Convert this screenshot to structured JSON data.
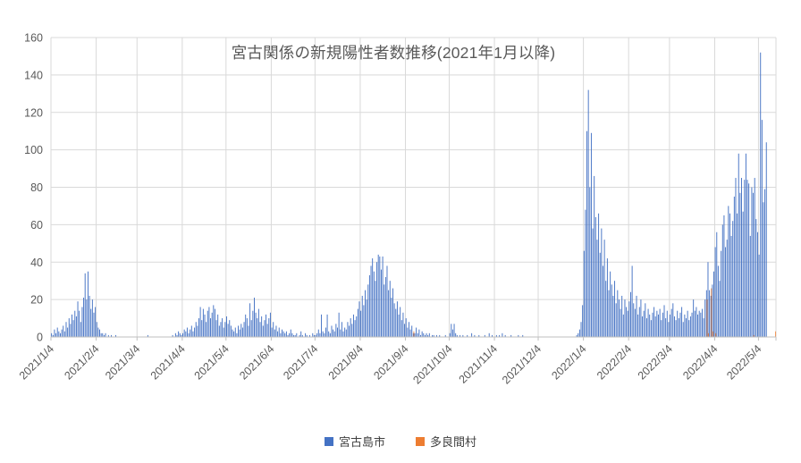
{
  "title": "宮古関係の新規陽性者数推移(2021年1月以降)",
  "legend": [
    {
      "label": "宮古島市",
      "color": "#4472C4"
    },
    {
      "label": "多良間村",
      "color": "#ED7D31"
    }
  ],
  "colors": {
    "series_blue": "#4472C4",
    "series_orange": "#ED7D31",
    "gridline": "#D9D9D9",
    "axis_line": "#BFBFBF",
    "axis_text": "#595959",
    "title_text": "#595959",
    "legend_text": "#404040",
    "background": "#FFFFFF"
  },
  "chart_data": {
    "type": "bar",
    "title": "宮古関係の新規陽性者数推移(2021年1月以降)",
    "xlabel": "",
    "ylabel": "",
    "ylim": [
      0,
      160
    ],
    "y_ticks": [
      0,
      20,
      40,
      60,
      80,
      100,
      120,
      140,
      160
    ],
    "grid": true,
    "legend_position": "bottom",
    "x_unit": "daily (one bar per day)",
    "start_date": "2021/1/4",
    "n_days": 497,
    "x_tick_labels": [
      "2021/1/4",
      "2021/2/4",
      "2021/3/4",
      "2021/4/4",
      "2021/5/4",
      "2021/6/4",
      "2021/7/4",
      "2021/8/4",
      "2021/9/4",
      "2021/10/4",
      "2021/11/4",
      "2021/12/4",
      "2022/1/4",
      "2022/2/4",
      "2022/3/4",
      "2022/4/4",
      "2022/5/4"
    ],
    "x_tick_indices": [
      0,
      31,
      59,
      90,
      120,
      151,
      181,
      212,
      243,
      273,
      304,
      334,
      365,
      396,
      424,
      455,
      485
    ],
    "series": [
      {
        "name": "宮古島市",
        "color": "#4472C4",
        "values": [
          2,
          1,
          4,
          2,
          5,
          3,
          2,
          4,
          6,
          3,
          8,
          5,
          10,
          7,
          12,
          9,
          14,
          11,
          19,
          14,
          8,
          16,
          21,
          34,
          20,
          35,
          22,
          15,
          20,
          13,
          16,
          8,
          5,
          4,
          2,
          2,
          1,
          2,
          0,
          1,
          0,
          1,
          0,
          0,
          1,
          0,
          0,
          0,
          0,
          0,
          0,
          0,
          0,
          0,
          0,
          0,
          0,
          0,
          0,
          0,
          0,
          0,
          0,
          0,
          0,
          0,
          1,
          0,
          0,
          0,
          0,
          0,
          0,
          0,
          0,
          0,
          0,
          0,
          0,
          0,
          0,
          0,
          0,
          1,
          0,
          2,
          1,
          3,
          2,
          1,
          2,
          4,
          3,
          5,
          2,
          4,
          6,
          3,
          5,
          8,
          6,
          10,
          16,
          9,
          15,
          12,
          8,
          14,
          16,
          10,
          13,
          17,
          15,
          9,
          12,
          6,
          8,
          10,
          5,
          8,
          11,
          7,
          9,
          6,
          4,
          3,
          5,
          2,
          6,
          4,
          7,
          5,
          8,
          12,
          10,
          6,
          18,
          9,
          14,
          21,
          13,
          10,
          15,
          8,
          11,
          6,
          9,
          12,
          7,
          10,
          13,
          5,
          8,
          4,
          6,
          3,
          5,
          2,
          4,
          3,
          2,
          3,
          1,
          2,
          4,
          2,
          1,
          1,
          2,
          0,
          1,
          3,
          1,
          0,
          2,
          1,
          0,
          1,
          0,
          2,
          1,
          1,
          2,
          4,
          2,
          12,
          3,
          2,
          5,
          12,
          3,
          2,
          6,
          4,
          3,
          7,
          5,
          13,
          4,
          8,
          3,
          5,
          4,
          8,
          6,
          10,
          7,
          12,
          9,
          11,
          15,
          19,
          14,
          22,
          17,
          25,
          20,
          28,
          33,
          38,
          42,
          35,
          30,
          40,
          44,
          43,
          36,
          43,
          28,
          32,
          38,
          25,
          30,
          21,
          26,
          18,
          15,
          19,
          12,
          16,
          9,
          13,
          7,
          10,
          5,
          8,
          4,
          6,
          2,
          2,
          5,
          2,
          4,
          1,
          3,
          2,
          1,
          2,
          1,
          2,
          0,
          1,
          1,
          0,
          1,
          0,
          1,
          0,
          0,
          0,
          1,
          0,
          0,
          2,
          7,
          4,
          7,
          2,
          1,
          0,
          1,
          0,
          1,
          0,
          0,
          1,
          0,
          0,
          2,
          0,
          1,
          0,
          0,
          1,
          0,
          0,
          0,
          1,
          0,
          0,
          2,
          0,
          1,
          0,
          0,
          1,
          0,
          1,
          0,
          2,
          0,
          1,
          0,
          0,
          0,
          1,
          0,
          0,
          0,
          0,
          1,
          0,
          0,
          1,
          0,
          0,
          0,
          0,
          0,
          0,
          0,
          0,
          0,
          0,
          0,
          0,
          0,
          0,
          0,
          0,
          0,
          0,
          0,
          0,
          0,
          0,
          0,
          0,
          0,
          0,
          0,
          0,
          0,
          0,
          0,
          0,
          0,
          0,
          0,
          0,
          1,
          2,
          4,
          8,
          17,
          46,
          68,
          110,
          132,
          80,
          109,
          58,
          86,
          64,
          52,
          66,
          45,
          58,
          38,
          52,
          30,
          42,
          25,
          35,
          28,
          22,
          30,
          18,
          25,
          20,
          15,
          22,
          12,
          20,
          16,
          14,
          19,
          24,
          38,
          18,
          15,
          22,
          12,
          16,
          20,
          11,
          14,
          18,
          10,
          15,
          12,
          9,
          13,
          16,
          11,
          14,
          12,
          15,
          9,
          13,
          17,
          10,
          14,
          8,
          12,
          15,
          18,
          11,
          9,
          14,
          10,
          13,
          16,
          8,
          12,
          10,
          14,
          9,
          11,
          13,
          20,
          14,
          16,
          12,
          14,
          13,
          15,
          10,
          20,
          25,
          40,
          25,
          22,
          28,
          35,
          48,
          56,
          38,
          30,
          46,
          60,
          65,
          48,
          52,
          70,
          66,
          54,
          62,
          75,
          85,
          66,
          98,
          77,
          85,
          67,
          84,
          98,
          84,
          82,
          54,
          80,
          77,
          85,
          63,
          56,
          44,
          152,
          116,
          72,
          79,
          104
        ]
      },
      {
        "name": "多良間村",
        "color": "#ED7D31",
        "sparse": true,
        "points": [
          [
            248,
            3
          ],
          [
            449,
            20
          ],
          [
            450,
            2
          ],
          [
            452,
            26
          ],
          [
            453,
            3
          ],
          [
            455,
            2
          ],
          [
            481,
            1
          ],
          [
            496,
            3
          ]
        ]
      }
    ],
    "notable_values": {
      "jan_2021_peak": 35,
      "aug_2021_peak": 44,
      "jan_2022_peak": 132,
      "may_2022_peak": 152,
      "tarama_peak": 26
    }
  }
}
